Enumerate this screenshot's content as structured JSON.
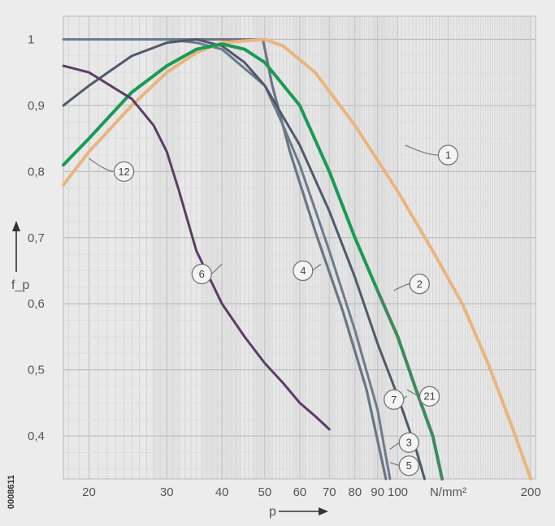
{
  "figure_id": "0008611",
  "chart_data": {
    "type": "line",
    "title": "",
    "xlabel": "p",
    "ylabel": "f_p",
    "xscale": "log",
    "xlim": [
      17.5,
      205
    ],
    "ylim": [
      0.335,
      1.035
    ],
    "x_tick_labels": [
      "20",
      "30",
      "40",
      "50",
      "60",
      "70",
      "80",
      "90",
      "100",
      "N/mm²",
      "200"
    ],
    "x_tick_values": [
      20,
      30,
      40,
      50,
      60,
      70,
      80,
      90,
      100,
      130,
      200
    ],
    "y_tick_labels": [
      "0,4",
      "0,5",
      "0,6",
      "0,7",
      "0,8",
      "0,9",
      "1"
    ],
    "y_tick_values": [
      0.4,
      0.5,
      0.6,
      0.7,
      0.8,
      0.9,
      1.0
    ],
    "grid": true,
    "legend": "none",
    "series": [
      {
        "name": "1",
        "color": "#eab57d",
        "points": [
          [
            17.5,
            0.78
          ],
          [
            20,
            0.83
          ],
          [
            25,
            0.9
          ],
          [
            30,
            0.95
          ],
          [
            35,
            0.98
          ],
          [
            40,
            0.995
          ],
          [
            50,
            1.0
          ],
          [
            55,
            0.99
          ],
          [
            65,
            0.95
          ],
          [
            80,
            0.87
          ],
          [
            100,
            0.77
          ],
          [
            120,
            0.68
          ],
          [
            140,
            0.6
          ],
          [
            160,
            0.51
          ],
          [
            180,
            0.42
          ],
          [
            200,
            0.335
          ]
        ]
      },
      {
        "name": "2",
        "color": "#1a9a55",
        "points": [
          [
            17.5,
            0.81
          ],
          [
            20,
            0.85
          ],
          [
            25,
            0.92
          ],
          [
            30,
            0.96
          ],
          [
            35,
            0.985
          ],
          [
            40,
            0.993
          ],
          [
            45,
            0.985
          ],
          [
            50,
            0.965
          ],
          [
            60,
            0.9
          ],
          [
            70,
            0.8
          ],
          [
            80,
            0.7
          ],
          [
            90,
            0.62
          ],
          [
            100,
            0.55
          ],
          [
            110,
            0.47
          ],
          [
            120,
            0.4
          ],
          [
            126,
            0.335
          ]
        ]
      },
      {
        "name": "21",
        "color": "#1a9a55",
        "dashed": true,
        "points": [
          [
            90,
            0.62
          ],
          [
            100,
            0.55
          ],
          [
            110,
            0.47
          ],
          [
            120,
            0.4
          ],
          [
            126,
            0.335
          ]
        ]
      },
      {
        "name": "7",
        "color": "#4e5a6a",
        "points": [
          [
            17.5,
            0.9
          ],
          [
            20,
            0.93
          ],
          [
            25,
            0.975
          ],
          [
            30,
            0.995
          ],
          [
            35,
            1.0
          ],
          [
            40,
            0.99
          ],
          [
            45,
            0.965
          ],
          [
            50,
            0.93
          ],
          [
            60,
            0.84
          ],
          [
            70,
            0.74
          ],
          [
            80,
            0.64
          ],
          [
            90,
            0.54
          ],
          [
            100,
            0.46
          ],
          [
            110,
            0.38
          ],
          [
            115,
            0.335
          ]
        ]
      },
      {
        "name": "3",
        "color": "#6c7b8c",
        "points": [
          [
            17.5,
            1.0
          ],
          [
            25,
            1.0
          ],
          [
            30,
            1.0
          ],
          [
            35,
            0.995
          ],
          [
            40,
            0.985
          ],
          [
            50,
            0.93
          ],
          [
            55,
            0.87
          ],
          [
            60,
            0.81
          ],
          [
            70,
            0.68
          ],
          [
            80,
            0.56
          ],
          [
            90,
            0.44
          ],
          [
            96,
            0.335
          ]
        ]
      },
      {
        "name": "5",
        "color": "#6a7584",
        "points": [
          [
            17.5,
            1.0
          ],
          [
            30,
            1.0
          ],
          [
            40,
            1.0
          ],
          [
            49.5,
            1.0
          ],
          [
            52,
            0.93
          ],
          [
            57,
            0.83
          ],
          [
            65,
            0.71
          ],
          [
            75,
            0.59
          ],
          [
            85,
            0.47
          ],
          [
            94,
            0.335
          ]
        ]
      },
      {
        "name": "4",
        "color": "#6a7584",
        "points": [
          [
            49.5,
            1.0
          ],
          [
            52,
            0.93
          ],
          [
            57,
            0.83
          ],
          [
            65,
            0.71
          ],
          [
            75,
            0.59
          ],
          [
            85,
            0.47
          ],
          [
            94,
            0.335
          ]
        ]
      },
      {
        "name": "6",
        "color": "#5b3d63",
        "points": [
          [
            17.5,
            0.96
          ],
          [
            20,
            0.95
          ],
          [
            25,
            0.91
          ],
          [
            28,
            0.87
          ],
          [
            30,
            0.83
          ],
          [
            32,
            0.77
          ],
          [
            35,
            0.68
          ],
          [
            40,
            0.6
          ],
          [
            45,
            0.55
          ],
          [
            50,
            0.51
          ],
          [
            55,
            0.48
          ],
          [
            60,
            0.45
          ],
          [
            65,
            0.43
          ],
          [
            70,
            0.41
          ]
        ]
      },
      {
        "name": "12",
        "color": "#1a9a55",
        "points": []
      }
    ],
    "annotations": [
      {
        "label": "1",
        "target_series": "1"
      },
      {
        "label": "2",
        "target_series": "2"
      },
      {
        "label": "21",
        "target_series": "21"
      },
      {
        "label": "7",
        "target_series": "7"
      },
      {
        "label": "3",
        "target_series": "3"
      },
      {
        "label": "5",
        "target_series": "5"
      },
      {
        "label": "4",
        "target_series": "4"
      },
      {
        "label": "6",
        "target_series": "6"
      },
      {
        "label": "12",
        "target_series": "2"
      }
    ]
  }
}
